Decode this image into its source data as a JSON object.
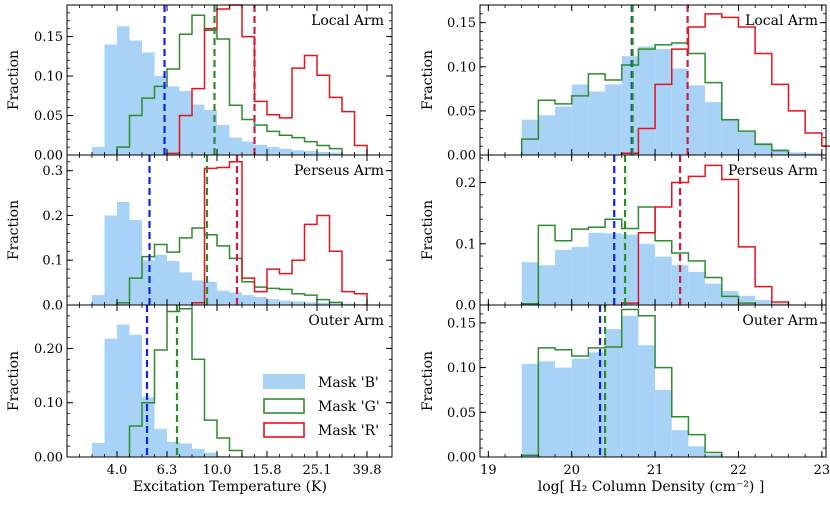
{
  "chart_data": {
    "type": "histogram",
    "legend": [
      {
        "label": "Mask 'B'",
        "color": "#a8d3f7",
        "style": "filled"
      },
      {
        "label": "Mask 'G'",
        "color": "#2e8b2e",
        "style": "step"
      },
      {
        "label": "Mask 'R'",
        "color": "#e8121c",
        "style": "step"
      }
    ],
    "ylabel": "Fraction",
    "rows": [
      "Local Arm",
      "Perseus Arm",
      "Outer Arm"
    ],
    "columns": [
      {
        "name": "temperature",
        "xlabel": "Excitation Temperature (K)",
        "xscale": "log10",
        "xlim_log10": [
          0.4,
          1.7
        ],
        "xticks_log10": [
          0.6,
          0.8,
          1.0,
          1.2,
          1.4,
          1.6
        ],
        "xtick_labels": [
          "4.0",
          "6.3",
          "10.0",
          "15.8",
          "25.1",
          "39.8"
        ],
        "bin_width_log10": 0.05,
        "panels": [
          {
            "title": "Local Arm",
            "ylim": [
              0,
              0.19
            ],
            "yticks": [
              0.0,
              0.05,
              0.1,
              0.15
            ],
            "ytick_labels": [
              "0.00",
              "0.05",
              "0.10",
              "0.15"
            ],
            "B": {
              "start": 0.5,
              "values": [
                0.01,
                0.14,
                0.163,
                0.145,
                0.13,
                0.1,
                0.087,
                0.081,
                0.064,
                0.057,
                0.038,
                0.022,
                0.017,
                0.013,
                0.01,
                0.008,
                0.006,
                0.005,
                0.004,
                0.003
              ]
            },
            "G": {
              "start": 0.6,
              "values": [
                0.01,
                0.05,
                0.072,
                0.087,
                0.109,
                0.153,
                0.177,
                0.158,
                0.147,
                0.063,
                0.045,
                0.038,
                0.03,
                0.025,
                0.022,
                0.017,
                0.012,
                0.008
              ]
            },
            "R": {
              "start": 0.8,
              "values": [
                0.002,
                0.05,
                0.084,
                0.16,
                0.185,
                0.19,
                0.15,
                0.068,
                0.051,
                0.047,
                0.11,
                0.126,
                0.101,
                0.073,
                0.055,
                0.012
              ]
            },
            "median": {
              "B": 0.79,
              "G": 0.99,
              "R": 1.15
            }
          },
          {
            "title": "Perseus Arm",
            "ylim": [
              0,
              0.335
            ],
            "yticks": [
              0.0,
              0.1,
              0.2,
              0.3
            ],
            "ytick_labels": [
              "0.0",
              "0.1",
              "0.2",
              "0.3"
            ],
            "B": {
              "start": 0.5,
              "values": [
                0.022,
                0.2,
                0.23,
                0.19,
                0.1,
                0.112,
                0.098,
                0.073,
                0.055,
                0.052,
                0.032,
                0.028,
                0.022,
                0.018,
                0.013,
                0.01,
                0.008,
                0.006,
                0.005,
                0.004,
                0.003,
                0.002,
                0.001
              ]
            },
            "G": {
              "start": 0.6,
              "values": [
                0.005,
                0.06,
                0.108,
                0.135,
                0.118,
                0.15,
                0.172,
                0.157,
                0.132,
                0.104,
                0.052,
                0.04,
                0.037,
                0.035,
                0.025,
                0.022,
                0.012,
                0.006
              ]
            },
            "R": {
              "start": 0.9,
              "values": [
                0.005,
                0.305,
                0.307,
                0.32,
                0.06,
                0.03,
                0.08,
                0.07,
                0.1,
                0.18,
                0.2,
                0.12,
                0.03,
                0.025
              ]
            },
            "median": {
              "B": 0.73,
              "G": 0.96,
              "R": 1.08
            }
          },
          {
            "title": "Outer Arm",
            "ylim": [
              0,
              0.28
            ],
            "yticks": [
              0.0,
              0.1,
              0.2
            ],
            "ytick_labels": [
              "0.00",
              "0.10",
              "0.20"
            ],
            "B": {
              "start": 0.5,
              "values": [
                0.026,
                0.218,
                0.244,
                0.225,
                0.11,
                0.052,
                0.028,
                0.025,
                0.015,
                0.008,
                0.002
              ]
            },
            "G": {
              "start": 0.65,
              "values": [
                0.057,
                0.1,
                0.197,
                0.268,
                0.273,
                0.18,
                0.068,
                0.035,
                0.012
              ]
            },
            "R": null,
            "median": {
              "B": 0.72,
              "G": 0.84
            }
          }
        ]
      },
      {
        "name": "column_density",
        "xlabel": "log[ H₂ Column Density (cm⁻²) ]",
        "xlim": [
          18.9,
          23.05
        ],
        "xticks": [
          19,
          20,
          21,
          22,
          23
        ],
        "xtick_labels": [
          "19",
          "20",
          "21",
          "22",
          "23"
        ],
        "bin_width": 0.2,
        "panels": [
          {
            "title": "Local Arm",
            "ylim": [
              0,
              0.17
            ],
            "yticks": [
              0.0,
              0.05,
              0.1,
              0.15
            ],
            "ytick_labels": [
              "0.00",
              "0.05",
              "0.10",
              "0.15"
            ],
            "B": {
              "start": 19.4,
              "values": [
                0.04,
                0.045,
                0.055,
                0.08,
                0.072,
                0.08,
                0.112,
                0.123,
                0.12,
                0.098,
                0.079,
                0.06,
                0.041,
                0.026,
                0.014,
                0.007,
                0.003,
                0.002
              ]
            },
            "G": {
              "start": 19.4,
              "values": [
                0.018,
                0.062,
                0.058,
                0.067,
                0.092,
                0.085,
                0.102,
                0.12,
                0.125,
                0.127,
                0.115,
                0.082,
                0.04,
                0.027,
                0.012,
                0.005
              ]
            },
            "R": {
              "start": 20.6,
              "values": [
                0.002,
                0.03,
                0.08,
                0.12,
                0.145,
                0.16,
                0.156,
                0.145,
                0.115,
                0.08,
                0.05,
                0.025,
                0.01,
                0.003
              ]
            },
            "median": {
              "B": 20.72,
              "G": 20.73,
              "R": 21.39
            }
          },
          {
            "title": "Perseus Arm",
            "ylim": [
              0,
              0.245
            ],
            "yticks": [
              0.0,
              0.1,
              0.2
            ],
            "ytick_labels": [
              "0.0",
              "0.1",
              "0.2"
            ],
            "B": {
              "start": 19.4,
              "values": [
                0.07,
                0.065,
                0.09,
                0.095,
                0.118,
                0.117,
                0.115,
                0.1,
                0.079,
                0.065,
                0.054,
                0.035,
                0.023,
                0.015,
                0.008,
                0.003,
                0.001
              ]
            },
            "G": {
              "start": 19.4,
              "values": [
                0.002,
                0.13,
                0.105,
                0.124,
                0.127,
                0.14,
                0.125,
                0.16,
                0.105,
                0.085,
                0.072,
                0.045,
                0.014,
                0.003
              ]
            },
            "R": {
              "start": 20.6,
              "values": [
                0.003,
                0.118,
                0.16,
                0.2,
                0.21,
                0.228,
                0.205,
                0.095,
                0.03,
                0.005
              ]
            },
            "median": {
              "B": 20.51,
              "G": 20.64,
              "R": 21.3
            }
          },
          {
            "title": "Outer Arm",
            "ylim": [
              0,
              0.17
            ],
            "yticks": [
              0.0,
              0.05,
              0.1,
              0.15
            ],
            "ytick_labels": [
              "0.00",
              "0.05",
              "0.10",
              "0.15"
            ],
            "B": {
              "start": 19.4,
              "values": [
                0.104,
                0.107,
                0.1,
                0.11,
                0.117,
                0.143,
                0.158,
                0.125,
                0.075,
                0.03,
                0.012,
                0.003
              ]
            },
            "G": {
              "start": 19.4,
              "values": [
                0.002,
                0.122,
                0.12,
                0.113,
                0.122,
                0.123,
                0.165,
                0.158,
                0.1,
                0.045,
                0.025,
                0.005
              ]
            },
            "R": null,
            "median": {
              "B": 20.34,
              "G": 20.4
            }
          }
        ]
      }
    ]
  }
}
